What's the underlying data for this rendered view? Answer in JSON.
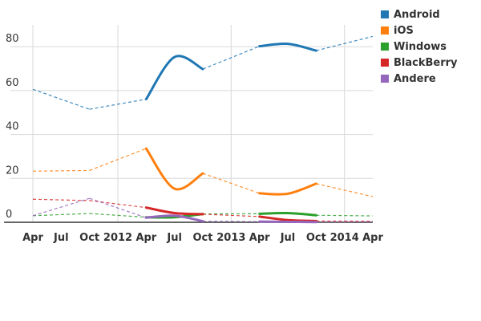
{
  "chart_data": {
    "type": "line",
    "title": "",
    "xlabel": "",
    "ylabel": "",
    "ylim": [
      0,
      90
    ],
    "yticks": [
      "0",
      "20",
      "40",
      "60",
      "80"
    ],
    "x_months_from_apr_2011": [
      0,
      6,
      12,
      15,
      18,
      24,
      27,
      30,
      36
    ],
    "x_dates": [
      "2011-04",
      "2011-10",
      "2012-04",
      "2012-07",
      "2012-10",
      "2013-04",
      "2013-07",
      "2013-10",
      "2014-04"
    ],
    "xtick_labels": [
      "Apr",
      "Jul",
      "Oct",
      "2012",
      "Apr",
      "Jul",
      "Oct",
      "2013",
      "Apr",
      "Jul",
      "Oct",
      "2014",
      "Apr"
    ],
    "solid_ranges": [
      [
        2,
        4
      ],
      [
        5,
        7
      ]
    ],
    "grid": true,
    "legend_position": "top-right",
    "series": [
      {
        "name": "Android",
        "color": "#1f77b4",
        "values": [
          60.6,
          51.5,
          56.1,
          75.3,
          69.8,
          80.2,
          81.3,
          78.2,
          84.7
        ]
      },
      {
        "name": "iOS",
        "color": "#ff7f0e",
        "values": [
          23.3,
          23.6,
          33.6,
          15.3,
          22.3,
          13.2,
          13.0,
          17.6,
          11.7
        ]
      },
      {
        "name": "Windows",
        "color": "#2ca02c",
        "values": [
          3.0,
          4.0,
          2.3,
          2.3,
          3.8,
          3.9,
          4.2,
          3.2,
          2.9
        ]
      },
      {
        "name": "BlackBerry",
        "color": "#d62728",
        "values": [
          10.5,
          9.9,
          6.7,
          4.2,
          3.7,
          2.6,
          1.0,
          0.6,
          0.5
        ]
      },
      {
        "name": "Andere",
        "color": "#9467bd",
        "values": [
          3.0,
          10.9,
          2.1,
          3.0,
          0.5,
          0.3,
          0.2,
          0.1,
          0.2
        ]
      }
    ]
  }
}
